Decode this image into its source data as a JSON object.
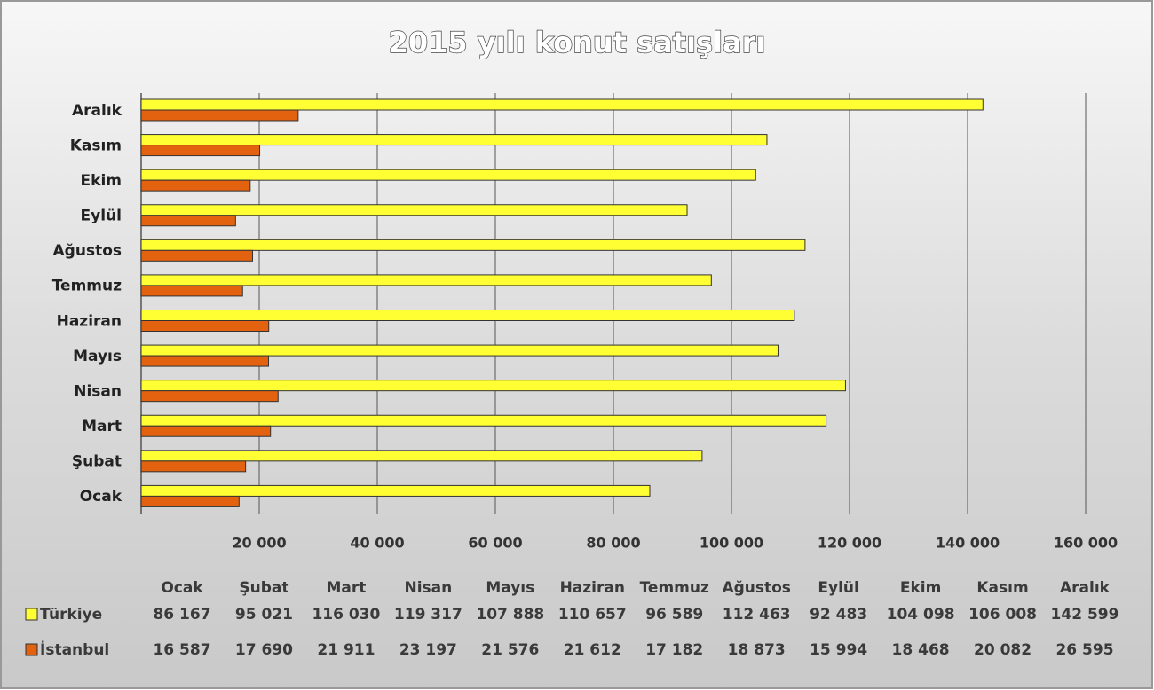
{
  "chart_data": {
    "type": "bar",
    "orientation": "horizontal",
    "title": "2015 yılı konut satışları",
    "categories": [
      "Ocak",
      "Şubat",
      "Mart",
      "Nisan",
      "Mayıs",
      "Haziran",
      "Temmuz",
      "Ağustos",
      "Eylül",
      "Ekim",
      "Kasım",
      "Aralık"
    ],
    "series": [
      {
        "name": "Türkiye",
        "color": "#ffff33",
        "values": [
          86167,
          95021,
          116030,
          119317,
          107888,
          110657,
          96589,
          112463,
          92483,
          104098,
          106008,
          142599
        ],
        "value_labels": [
          "86 167",
          "95 021",
          "116 030",
          "119 317",
          "107 888",
          "110 657",
          "96 589",
          "112 463",
          "92 483",
          "104 098",
          "106 008",
          "142 599"
        ]
      },
      {
        "name": "İstanbul",
        "color": "#e2620f",
        "values": [
          16587,
          17690,
          21911,
          23197,
          21576,
          21612,
          17182,
          18873,
          15994,
          18468,
          20082,
          26595
        ],
        "value_labels": [
          "16 587",
          "17 690",
          "21 911",
          "23 197",
          "21 576",
          "21 612",
          "17 182",
          "18 873",
          "15 994",
          "18 468",
          "20 082",
          "26 595"
        ]
      }
    ],
    "xlim": [
      0,
      160000
    ],
    "xticks": [
      {
        "value": 20000,
        "label": "20 000"
      },
      {
        "value": 40000,
        "label": "40 000"
      },
      {
        "value": 60000,
        "label": "60 000"
      },
      {
        "value": 80000,
        "label": "80 000"
      },
      {
        "value": 100000,
        "label": "100 000"
      },
      {
        "value": 120000,
        "label": "120 000"
      },
      {
        "value": 140000,
        "label": "140 000"
      },
      {
        "value": 160000,
        "label": "160 000"
      }
    ],
    "grid": true
  }
}
